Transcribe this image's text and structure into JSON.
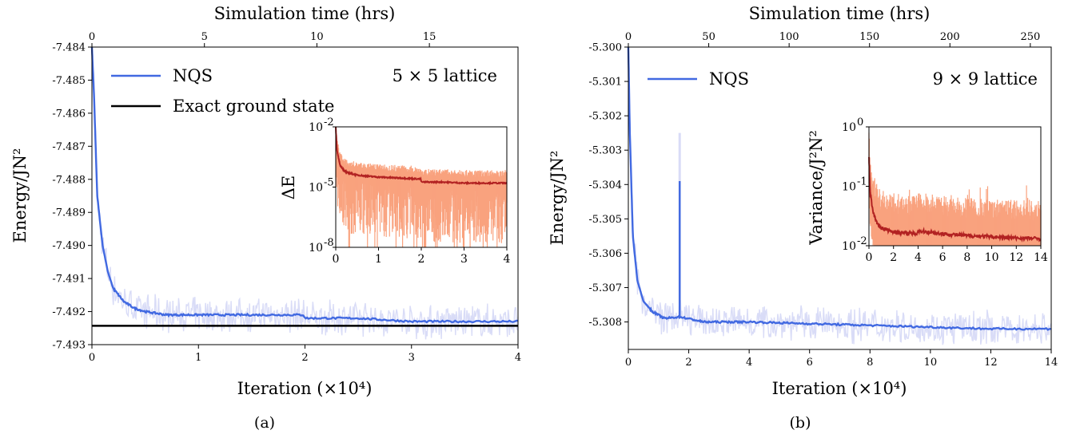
{
  "chart_data": [
    {
      "type": "line",
      "caption": "(a)",
      "xlabel": "Iteration (×10⁴)",
      "x2label": "Simulation time (hrs)",
      "ylabel": "Energy/JN²",
      "annotation": "5 × 5 lattice",
      "xlim": [
        0,
        4
      ],
      "x2lim": [
        0,
        18.94
      ],
      "ylim": [
        -7.493,
        -7.484
      ],
      "xticks": [
        "0",
        "1",
        "2",
        "3",
        "4"
      ],
      "x2ticks": [
        "0",
        "5",
        "10",
        "15"
      ],
      "x2tick_values": [
        0,
        5,
        10,
        15
      ],
      "yticks": [
        "-7.484",
        "-7.485",
        "-7.486",
        "-7.487",
        "-7.488",
        "-7.489",
        "-7.490",
        "-7.491",
        "-7.492",
        "-7.493"
      ],
      "legend": [
        "NQS",
        "Exact ground state"
      ],
      "colors": {
        "nqs": "#4169e1",
        "noise": "#d9dcf7",
        "exact": "#000000"
      },
      "exact_value": -7.49243,
      "series": [
        {
          "name": "NQS",
          "x": [
            0,
            0.02,
            0.05,
            0.1,
            0.15,
            0.2,
            0.3,
            0.4,
            0.5,
            0.7,
            1.0,
            1.5,
            1.99,
            2.0,
            2.5,
            3.0,
            3.5,
            4.0
          ],
          "y": [
            -7.484,
            -7.4855,
            -7.4885,
            -7.49,
            -7.4908,
            -7.4913,
            -7.4917,
            -7.4919,
            -7.492,
            -7.4921,
            -7.4921,
            -7.4921,
            -7.4921,
            -7.4922,
            -7.4922,
            -7.4923,
            -7.4923,
            -7.4923
          ]
        }
      ],
      "inset": {
        "ylabel": "ΔE",
        "xlim": [
          0,
          4
        ],
        "xticks": [
          "0",
          "1",
          "2",
          "3",
          "4"
        ],
        "yticks": [
          "10",
          "10",
          "10"
        ],
        "ytick_exp": [
          "-2",
          "-5",
          "-8"
        ],
        "ylog": [
          -8,
          -2
        ],
        "colors": {
          "line": "#b22222",
          "band": "#f9a27e"
        },
        "x": [
          0,
          0.03,
          0.1,
          0.2,
          0.3,
          0.5,
          0.7,
          1.0,
          1.5,
          1.99,
          2.0,
          2.5,
          3.0,
          3.5,
          4.0
        ],
        "y": [
          -2.0,
          -3.2,
          -3.9,
          -4.2,
          -4.3,
          -4.4,
          -4.45,
          -4.5,
          -4.55,
          -4.6,
          -4.75,
          -4.75,
          -4.8,
          -4.8,
          -4.8
        ]
      }
    },
    {
      "type": "line",
      "caption": "(b)",
      "xlabel": "Iteration (×10⁴)",
      "x2label": "Simulation time (hrs)",
      "ylabel": "Energy/JN²",
      "annotation": "9 × 9 lattice",
      "xlim": [
        0,
        14
      ],
      "x2lim": [
        0,
        263
      ],
      "ylim": [
        -5.3088,
        -5.3
      ],
      "xticks": [
        "0",
        "2",
        "4",
        "6",
        "8",
        "10",
        "12",
        "14"
      ],
      "x2ticks": [
        "0",
        "50",
        "100",
        "150",
        "200",
        "250"
      ],
      "x2tick_values": [
        0,
        50,
        100,
        150,
        200,
        250
      ],
      "yticks": [
        "-5.300",
        "-5.301",
        "-5.302",
        "-5.303",
        "-5.304",
        "-5.305",
        "-5.306",
        "-5.307",
        "-5.308"
      ],
      "legend": [
        "NQS"
      ],
      "colors": {
        "nqs": "#4169e1",
        "noise": "#d9dcf7"
      },
      "series": [
        {
          "name": "NQS",
          "x": [
            0,
            0.05,
            0.15,
            0.3,
            0.5,
            0.8,
            1.2,
            1.7,
            2.5,
            4,
            6,
            8,
            10,
            12,
            14
          ],
          "y": [
            -5.3,
            -5.3025,
            -5.3055,
            -5.3068,
            -5.3074,
            -5.3077,
            -5.3079,
            -5.30785,
            -5.308,
            -5.308,
            -5.30805,
            -5.3081,
            -5.30815,
            -5.3082,
            -5.3082
          ]
        }
      ],
      "spike": {
        "x": 1.7,
        "y": -5.3039
      },
      "inset": {
        "ylabel": "Variance/J²N²",
        "xlim": [
          0,
          14
        ],
        "xticks": [
          "0",
          "2",
          "4",
          "6",
          "8",
          "10",
          "12",
          "14"
        ],
        "yticks": [
          "10",
          "10",
          "10"
        ],
        "ytick_exp": [
          "0",
          "-1",
          "-2"
        ],
        "ylog": [
          -2,
          0
        ],
        "colors": {
          "line": "#b22222",
          "band": "#f9a27e"
        },
        "x": [
          0,
          0.1,
          0.3,
          0.6,
          1.0,
          1.7,
          2.5,
          3.9,
          4.0,
          6,
          8,
          10,
          12,
          14
        ],
        "y": [
          -0.5,
          -1.1,
          -1.4,
          -1.6,
          -1.7,
          -1.75,
          -1.78,
          -1.8,
          -1.75,
          -1.8,
          -1.83,
          -1.85,
          -1.87,
          -1.88
        ]
      }
    }
  ]
}
